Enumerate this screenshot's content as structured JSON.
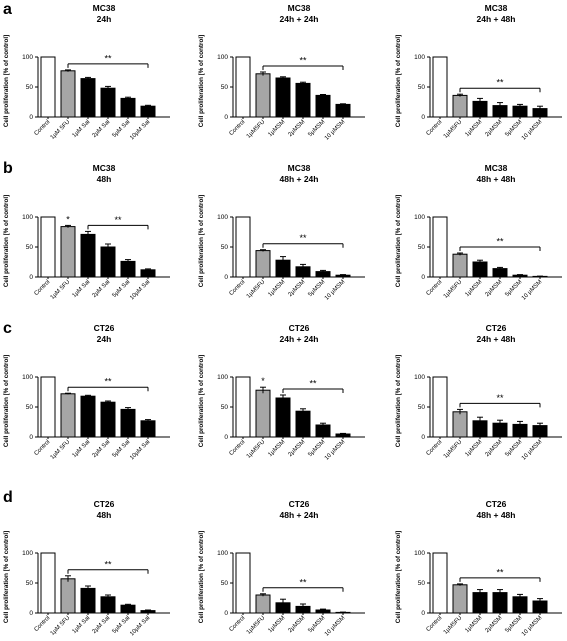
{
  "panel_letters": [
    "a",
    "b",
    "c",
    "d"
  ],
  "colors": {
    "control": "#ffffff",
    "fu": "#a6a6a6",
    "treatment": "#000000",
    "axis": "#000000"
  },
  "chart_data": [
    {
      "type": "bar",
      "title": [
        "MC38",
        "24h"
      ],
      "ylabel": "Cell proliferation [% of control]",
      "ylim": [
        0,
        100
      ],
      "yticks": [
        0,
        50,
        100
      ],
      "categories": [
        "Control",
        "1µM 5FU",
        "1µM Sal",
        "2µM Sal",
        "5µM Sal",
        "10µM Sal"
      ],
      "values": [
        100,
        77,
        64,
        48,
        31,
        18
      ],
      "errors": [
        0,
        1.5,
        2,
        3,
        2,
        1.5
      ],
      "annotations": [
        {
          "text": "**",
          "from": 1,
          "to": 5
        }
      ]
    },
    {
      "type": "bar",
      "title": [
        "MC38",
        "24h + 24h"
      ],
      "ylabel": "Cell proliferation [% of control]",
      "ylim": [
        0,
        100
      ],
      "yticks": [
        0,
        50,
        100
      ],
      "categories": [
        "Control",
        "1µM5FU",
        "1µMSM",
        "2µMSM",
        "5µMSM",
        "10 µMSM"
      ],
      "values": [
        100,
        72,
        65,
        56,
        36,
        21
      ],
      "errors": [
        0,
        3,
        2,
        2,
        1.5,
        1
      ],
      "annotations": [
        {
          "text": "**",
          "from": 1,
          "to": 5
        }
      ]
    },
    {
      "type": "bar",
      "title": [
        "MC38",
        "24h + 48h"
      ],
      "ylabel": "Cell proliferation [% of control]",
      "ylim": [
        0,
        100
      ],
      "yticks": [
        0,
        50,
        100
      ],
      "categories": [
        "Control",
        "1µM5FU",
        "1µMSM",
        "2µMSM",
        "5µMSM",
        "10 µMSM"
      ],
      "values": [
        100,
        36,
        26,
        19,
        18,
        14
      ],
      "errors": [
        0,
        2,
        5,
        5,
        3,
        4
      ],
      "annotations": [
        {
          "text": "**",
          "from": 1,
          "to": 5
        }
      ]
    },
    {
      "type": "bar",
      "title": [
        "MC38",
        "48h"
      ],
      "ylabel": "Cell proliferation [% of control]",
      "ylim": [
        0,
        100
      ],
      "yticks": [
        0,
        50,
        100
      ],
      "categories": [
        "Control",
        "1µM 5FU",
        "1µM Sal",
        "2µM Sal",
        "5µM Sal",
        "10µM Sal"
      ],
      "values": [
        100,
        84,
        71,
        50,
        26,
        12
      ],
      "errors": [
        0,
        2,
        5,
        5,
        3,
        1.5
      ],
      "annotations": [
        {
          "text": "*",
          "from": 1,
          "to": 1
        },
        {
          "text": "**",
          "from": 2,
          "to": 5
        }
      ]
    },
    {
      "type": "bar",
      "title": [
        "MC38",
        "48h + 24h"
      ],
      "ylabel": "Cell proliferation [% of control]",
      "ylim": [
        0,
        100
      ],
      "yticks": [
        0,
        50,
        100
      ],
      "categories": [
        "Control",
        "1µM5FU",
        "1µMSM",
        "2µMSM",
        "5µMSM",
        "10 µMSM"
      ],
      "values": [
        100,
        44,
        28,
        17,
        9,
        3
      ],
      "errors": [
        0,
        1.5,
        6,
        4,
        2,
        1
      ],
      "annotations": [
        {
          "text": "**",
          "from": 1,
          "to": 5
        }
      ]
    },
    {
      "type": "bar",
      "title": [
        "MC38",
        "48h + 48h"
      ],
      "ylabel": "Cell proliferation [% of control]",
      "ylim": [
        0,
        100
      ],
      "yticks": [
        0,
        50,
        100
      ],
      "categories": [
        "Control",
        "1µM5FU",
        "1µMSM",
        "2µMSM",
        "5µMSM",
        "10 µMSM"
      ],
      "values": [
        100,
        38,
        25,
        14,
        3,
        1
      ],
      "errors": [
        0,
        2,
        3,
        2,
        1,
        0.5
      ],
      "annotations": [
        {
          "text": "**",
          "from": 1,
          "to": 5
        }
      ]
    },
    {
      "type": "bar",
      "title": [
        "CT26",
        "24h"
      ],
      "ylabel": "Cell proliferation [% of control]",
      "ylim": [
        0,
        100
      ],
      "yticks": [
        0,
        50,
        100
      ],
      "categories": [
        "Control",
        "1µM 5FU",
        "1µM Sal",
        "2µM Sal",
        "5µM Sal",
        "10µM Sal"
      ],
      "values": [
        100,
        72,
        68,
        58,
        46,
        27
      ],
      "errors": [
        0,
        1,
        1.5,
        2,
        3,
        2
      ],
      "annotations": [
        {
          "text": "**",
          "from": 1,
          "to": 5
        }
      ]
    },
    {
      "type": "bar",
      "title": [
        "CT26",
        "24h + 24h"
      ],
      "ylabel": "Cell proliferation [% of control]",
      "ylim": [
        0,
        100
      ],
      "yticks": [
        0,
        50,
        100
      ],
      "categories": [
        "Control",
        "1µM5FU",
        "1µMSM",
        "2µMSM",
        "5µMSM",
        "10 µMSM"
      ],
      "values": [
        100,
        78,
        65,
        43,
        20,
        5
      ],
      "errors": [
        0,
        5,
        5,
        4,
        3,
        1
      ],
      "annotations": [
        {
          "text": "*",
          "from": 1,
          "to": 1
        },
        {
          "text": "**",
          "from": 2,
          "to": 5
        }
      ]
    },
    {
      "type": "bar",
      "title": [
        "CT26",
        "24h + 48h"
      ],
      "ylabel": "Cell proliferation [% of control]",
      "ylim": [
        0,
        100
      ],
      "yticks": [
        0,
        50,
        100
      ],
      "categories": [
        "Control",
        "1µM5FU",
        "1µMSM",
        "2µMSM",
        "5µMSM",
        "10 µMSM"
      ],
      "values": [
        100,
        42,
        27,
        23,
        21,
        19
      ],
      "errors": [
        0,
        4,
        6,
        5,
        5,
        4
      ],
      "annotations": [
        {
          "text": "**",
          "from": 1,
          "to": 5
        }
      ]
    },
    {
      "type": "bar",
      "title": [
        "CT26",
        "48h"
      ],
      "ylabel": "Cell proliferation [% of control]",
      "ylim": [
        0,
        100
      ],
      "yticks": [
        0,
        50,
        100
      ],
      "categories": [
        "Control",
        "1µM 5FU",
        "1µM Sal",
        "2µM Sal",
        "5µM Sal",
        "10µM Sal"
      ],
      "values": [
        100,
        57,
        41,
        27,
        13,
        4
      ],
      "errors": [
        0,
        5,
        4,
        3,
        1.5,
        1
      ],
      "annotations": [
        {
          "text": "**",
          "from": 1,
          "to": 5
        }
      ]
    },
    {
      "type": "bar",
      "title": [
        "CT26",
        "48h + 24h"
      ],
      "ylabel": "Cell proliferation [% of control]",
      "ylim": [
        0,
        100
      ],
      "yticks": [
        0,
        50,
        100
      ],
      "categories": [
        "Control",
        "1µM5FU",
        "1µMSM",
        "2µMSM",
        "5µMSM",
        "10 µMSM"
      ],
      "values": [
        100,
        30,
        17,
        11,
        5,
        1
      ],
      "errors": [
        0,
        2,
        6,
        4,
        1.5,
        0.5
      ],
      "annotations": [
        {
          "text": "**",
          "from": 1,
          "to": 5
        }
      ]
    },
    {
      "type": "bar",
      "title": [
        "CT26",
        "48h + 48h"
      ],
      "ylabel": "Cell proliferation [% of control]",
      "ylim": [
        0,
        100
      ],
      "yticks": [
        0,
        50,
        100
      ],
      "categories": [
        "Control",
        "1µM5FU",
        "1µMSM",
        "2µMSM",
        "5µMSM",
        "10 µMSM"
      ],
      "values": [
        100,
        47,
        34,
        34,
        27,
        20
      ],
      "errors": [
        0,
        1.5,
        5,
        5,
        4,
        4
      ],
      "annotations": [
        {
          "text": "**",
          "from": 1,
          "to": 5
        }
      ]
    }
  ]
}
